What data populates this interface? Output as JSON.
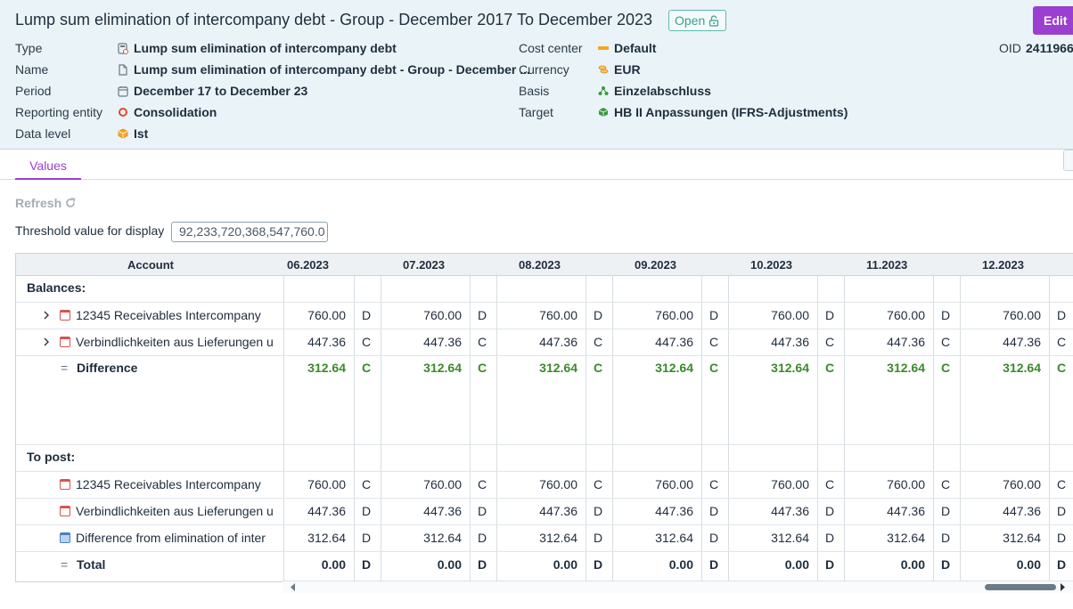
{
  "header": {
    "title": "Lump sum elimination of intercompany debt - Group - December 2017 To December 2023",
    "status_badge": "Open",
    "edit_label": "Edit",
    "oid_label": "OID",
    "oid_value": "2411966",
    "left_fields": [
      {
        "label": "Type",
        "value": "Lump sum elimination of intercompany debt",
        "icon": "calculator-icon"
      },
      {
        "label": "Name",
        "value": "Lump sum elimination of intercompany debt - Group - December ...",
        "icon": "document-icon"
      },
      {
        "label": "Period",
        "value": "December 17 to December 23",
        "icon": "calendar-icon"
      },
      {
        "label": "Reporting entity",
        "value": "Consolidation",
        "icon": "circle-icon"
      },
      {
        "label": "Data level",
        "value": "Ist",
        "icon": "cube-icon"
      }
    ],
    "right_fields": [
      {
        "label": "Cost center",
        "value": "Default",
        "icon": "bar-icon"
      },
      {
        "label": "Currency",
        "value": "EUR",
        "icon": "coins-icon"
      },
      {
        "label": "Basis",
        "value": "Einzelabschluss",
        "icon": "network-icon"
      },
      {
        "label": "Target",
        "value": "HB II Anpassungen (IFRS-Adjustments)",
        "icon": "box-icon"
      }
    ]
  },
  "tabs": {
    "values": "Values"
  },
  "toolbar": {
    "refresh": "Refresh"
  },
  "threshold": {
    "label": "Threshold value for display",
    "value": "92,233,720,368,547,760.0"
  },
  "table": {
    "account_header": "Account",
    "periods": [
      "06.2023",
      "07.2023",
      "08.2023",
      "09.2023",
      "10.2023",
      "11.2023",
      "12.2023"
    ],
    "balances_label": "Balances:",
    "to_post_label": "To post:",
    "rows": [
      {
        "name": "12345 Receivables Intercompany",
        "value": "760.00",
        "dc": "D"
      },
      {
        "name": "Verbindlichkeiten aus Lieferungen u",
        "value": "447.36",
        "dc": "C"
      },
      {
        "name": "Difference",
        "value": "312.64",
        "dc": "C"
      },
      {
        "name": "12345 Receivables Intercompany",
        "value": "760.00",
        "dc": "C"
      },
      {
        "name": "Verbindlichkeiten aus Lieferungen u",
        "value": "447.36",
        "dc": "D"
      },
      {
        "name": "Difference from elimination of inter",
        "value": "312.64",
        "dc": "D"
      },
      {
        "name": "Total",
        "value": "0.00",
        "dc": "D"
      }
    ],
    "equals": "="
  }
}
